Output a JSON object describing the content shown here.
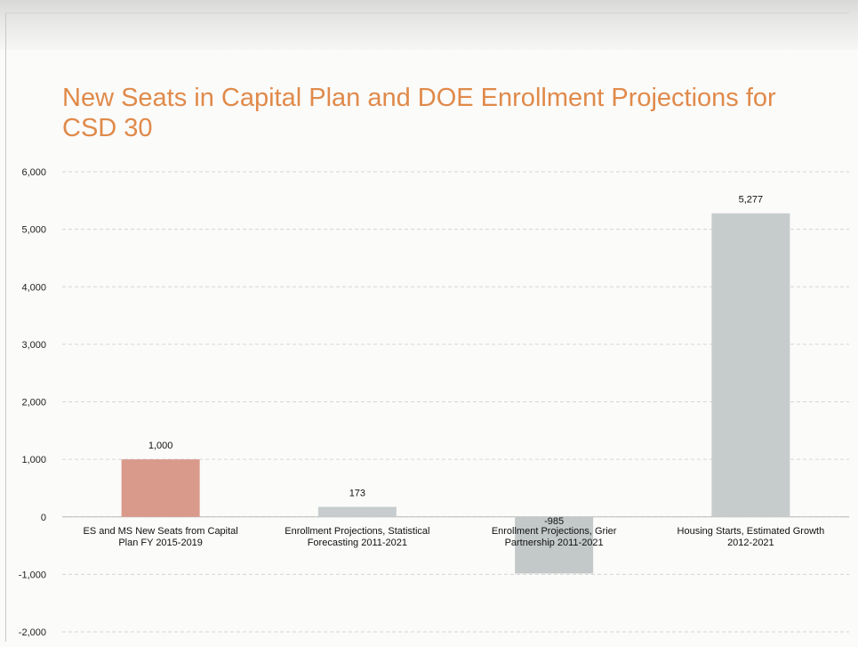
{
  "title": "New Seats in Capital Plan and DOE Enrollment Projections for CSD 30",
  "chart_data": {
    "type": "bar",
    "title": "New Seats in Capital Plan and DOE Enrollment Projections for CSD 30",
    "xlabel": "",
    "ylabel": "",
    "ylim": [
      -2000,
      6000
    ],
    "yticks": [
      -2000,
      -1000,
      0,
      1000,
      2000,
      3000,
      4000,
      5000,
      6000
    ],
    "ytick_labels": [
      "-2,000",
      "-1,000",
      "0",
      "1,000",
      "2,000",
      "3,000",
      "4,000",
      "5,000",
      "6,000"
    ],
    "categories": [
      [
        "ES and MS New Seats from Capital",
        "Plan FY 2015-2019"
      ],
      [
        "Enrollment Projections, Statistical",
        "Forecasting 2011-2021"
      ],
      [
        "Enrollment Projections, Grier",
        "Partnership 2011-2021"
      ],
      [
        "Housing Starts, Estimated Growth",
        "2012-2021"
      ]
    ],
    "values": [
      1000,
      173,
      -985,
      5277
    ],
    "data_labels": [
      "1,000",
      "173",
      "-985",
      "5,277"
    ],
    "colors": [
      "#d99a8c",
      "#c7cdcf",
      "#c3c8c9",
      "#c6cbcc"
    ],
    "grid": true
  }
}
